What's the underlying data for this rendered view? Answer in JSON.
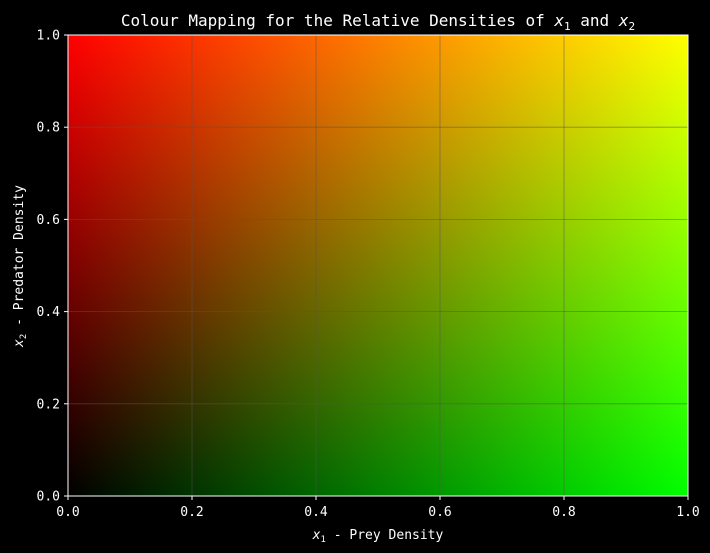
{
  "chart_data": {
    "type": "heatmap",
    "title": {
      "pre": "Colour Mapping for the Relative Densities of ",
      "v1": "x",
      "s1": "1",
      "mid": " and ",
      "v2": "x",
      "s2": "2"
    },
    "xlabel": {
      "var": "x",
      "sub": "1",
      "text": " - Prey Density"
    },
    "ylabel": {
      "var": "x",
      "sub": "2",
      "text": " - Predator Density"
    },
    "xlim": [
      0.0,
      1.0
    ],
    "ylim": [
      0.0,
      1.0
    ],
    "xticks": [
      "0.0",
      "0.2",
      "0.4",
      "0.6",
      "0.8",
      "1.0"
    ],
    "yticks": [
      "0.0",
      "0.2",
      "0.4",
      "0.6",
      "0.8",
      "1.0"
    ],
    "grid": true,
    "color_mapping": {
      "red_channel": "x2",
      "green_channel": "x1",
      "blue_channel": 0,
      "corners": {
        "x0_y0": "#000000",
        "x1_y0": "#00ff00",
        "x0_y1": "#ff0000",
        "x1_y1": "#ffff00"
      }
    },
    "colors": {
      "background": "#000000",
      "text": "#ffffff",
      "grid": "#555555"
    }
  }
}
